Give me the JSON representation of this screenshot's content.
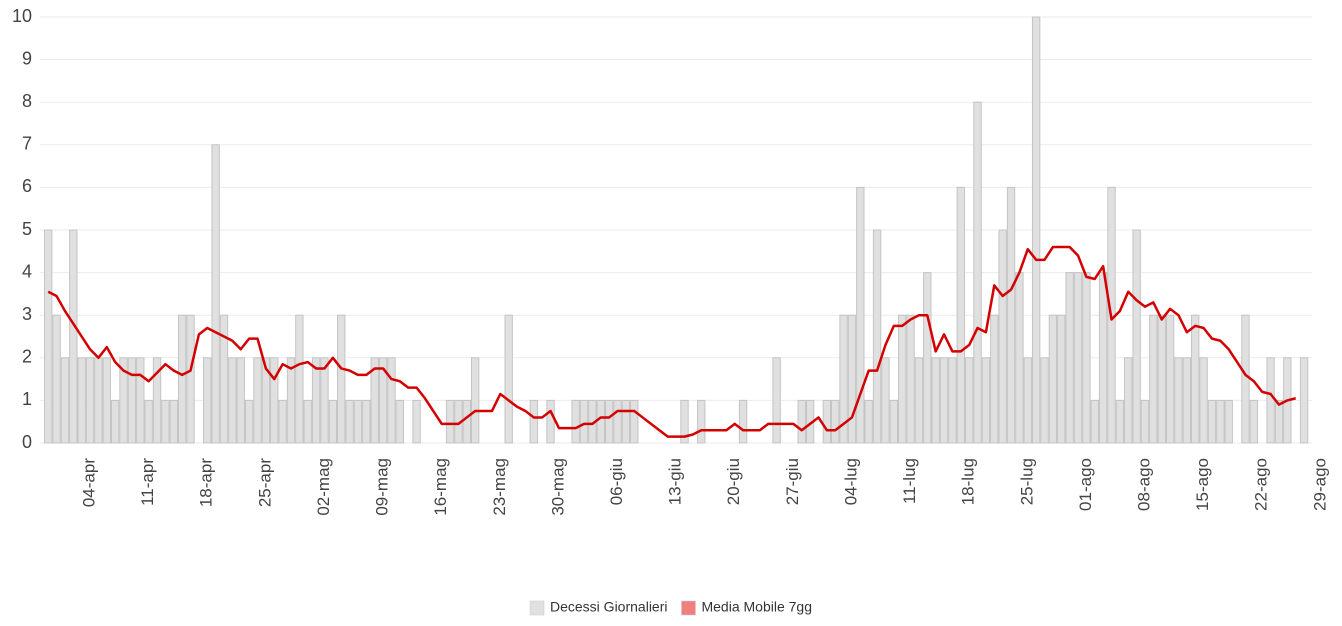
{
  "chart_data": {
    "type": "bar",
    "categories": [
      null,
      null,
      null,
      null,
      null,
      "04-apr",
      null,
      null,
      null,
      null,
      null,
      null,
      "11-apr",
      null,
      null,
      null,
      null,
      null,
      null,
      "18-apr",
      null,
      null,
      null,
      null,
      null,
      null,
      "25-apr",
      null,
      null,
      null,
      null,
      null,
      null,
      "02-mag",
      null,
      null,
      null,
      null,
      null,
      null,
      "09-mag",
      null,
      null,
      null,
      null,
      null,
      null,
      "16-mag",
      null,
      null,
      null,
      null,
      null,
      null,
      "23-mag",
      null,
      null,
      null,
      null,
      null,
      null,
      "30-mag",
      null,
      null,
      null,
      null,
      null,
      null,
      "06-giu",
      null,
      null,
      null,
      null,
      null,
      null,
      "13-giu",
      null,
      null,
      null,
      null,
      null,
      null,
      "20-giu",
      null,
      null,
      null,
      null,
      null,
      null,
      "27-giu",
      null,
      null,
      null,
      null,
      null,
      null,
      "04-lug",
      null,
      null,
      null,
      null,
      null,
      null,
      "11-lug",
      null,
      null,
      null,
      null,
      null,
      null,
      "18-lug",
      null,
      null,
      null,
      null,
      null,
      null,
      "25-lug",
      null,
      null,
      null,
      null,
      null,
      null,
      "01-ago",
      null,
      null,
      null,
      null,
      null,
      null,
      "08-ago",
      null,
      null,
      null,
      null,
      null,
      null,
      "15-ago",
      null,
      null,
      null,
      null,
      null,
      null,
      "22-ago",
      null,
      null,
      null,
      null,
      null,
      null,
      "29-ago"
    ],
    "series": [
      {
        "name": "Decessi Giornalieri",
        "type": "bar",
        "color": "#e0e0e0",
        "legend_color": "#e0e0e0",
        "values": [
          5,
          3,
          2,
          5,
          2,
          2,
          2,
          2,
          1,
          2,
          2,
          2,
          1,
          2,
          1,
          1,
          3,
          3,
          0,
          2,
          7,
          3,
          2,
          2,
          1,
          2,
          2,
          2,
          1,
          2,
          3,
          1,
          2,
          2,
          1,
          3,
          1,
          1,
          1,
          2,
          2,
          2,
          1,
          0,
          1,
          0,
          0,
          0,
          1,
          1,
          1,
          2,
          0,
          0,
          0,
          3,
          0,
          0,
          1,
          0,
          1,
          0,
          0,
          1,
          1,
          1,
          1,
          1,
          1,
          1,
          1,
          0,
          0,
          0,
          0,
          0,
          1,
          0,
          1,
          0,
          0,
          0,
          0,
          1,
          0,
          0,
          0,
          2,
          0,
          0,
          1,
          1,
          0,
          1,
          1,
          3,
          3,
          6,
          1,
          5,
          2,
          1,
          3,
          3,
          2,
          4,
          2,
          2,
          2,
          6,
          2,
          8,
          2,
          3,
          5,
          6,
          4,
          2,
          10,
          2,
          3,
          3,
          4,
          4,
          4,
          1,
          4,
          6,
          1,
          2,
          5,
          1,
          3,
          3,
          3,
          2,
          2,
          3,
          2,
          1,
          1,
          1,
          0,
          3,
          1,
          0,
          2,
          1,
          2,
          0,
          2,
          null,
          null
        ]
      },
      {
        "name": "Media Mobile 7gg",
        "type": "line",
        "color": "#d40000",
        "legend_color": "#f08080",
        "values": [
          3.55,
          3.45,
          3.1,
          2.8,
          2.5,
          2.2,
          2.0,
          2.25,
          1.9,
          1.7,
          1.6,
          1.6,
          1.45,
          1.65,
          1.85,
          1.7,
          1.6,
          1.7,
          2.55,
          2.7,
          2.6,
          2.5,
          2.4,
          2.2,
          2.45,
          2.45,
          1.75,
          1.5,
          1.85,
          1.75,
          1.85,
          1.9,
          1.75,
          1.75,
          2.0,
          1.75,
          1.7,
          1.6,
          1.6,
          1.75,
          1.75,
          1.5,
          1.45,
          1.3,
          1.3,
          1.05,
          0.75,
          0.45,
          0.45,
          0.45,
          0.6,
          0.75,
          0.75,
          0.75,
          1.15,
          1.0,
          0.85,
          0.75,
          0.6,
          0.6,
          0.75,
          0.35,
          0.35,
          0.35,
          0.45,
          0.45,
          0.6,
          0.6,
          0.75,
          0.75,
          0.75,
          0.6,
          0.45,
          0.3,
          0.15,
          0.15,
          0.15,
          0.2,
          0.3,
          0.3,
          0.3,
          0.3,
          0.45,
          0.3,
          0.3,
          0.3,
          0.45,
          0.45,
          0.45,
          0.45,
          0.3,
          0.45,
          0.6,
          0.3,
          0.3,
          0.45,
          0.6,
          1.15,
          1.7,
          1.7,
          2.3,
          2.75,
          2.75,
          2.9,
          3.0,
          3.0,
          2.15,
          2.55,
          2.15,
          2.15,
          2.3,
          2.7,
          2.6,
          3.7,
          3.45,
          3.6,
          4.0,
          4.55,
          4.3,
          4.3,
          4.6,
          4.6,
          4.6,
          4.4,
          3.9,
          3.85,
          4.15,
          2.9,
          3.1,
          3.55,
          3.35,
          3.2,
          3.3,
          2.9,
          3.15,
          3.0,
          2.6,
          2.75,
          2.7,
          2.45,
          2.4,
          2.2,
          1.9,
          1.6,
          1.45,
          1.2,
          1.15,
          0.9,
          1.0,
          1.05,
          null,
          null,
          null
        ]
      }
    ],
    "ylim": [
      0,
      10
    ],
    "yticks": [
      0,
      1,
      2,
      3,
      4,
      5,
      6,
      7,
      8,
      9,
      10
    ],
    "grid": true,
    "legend": "bottom"
  }
}
